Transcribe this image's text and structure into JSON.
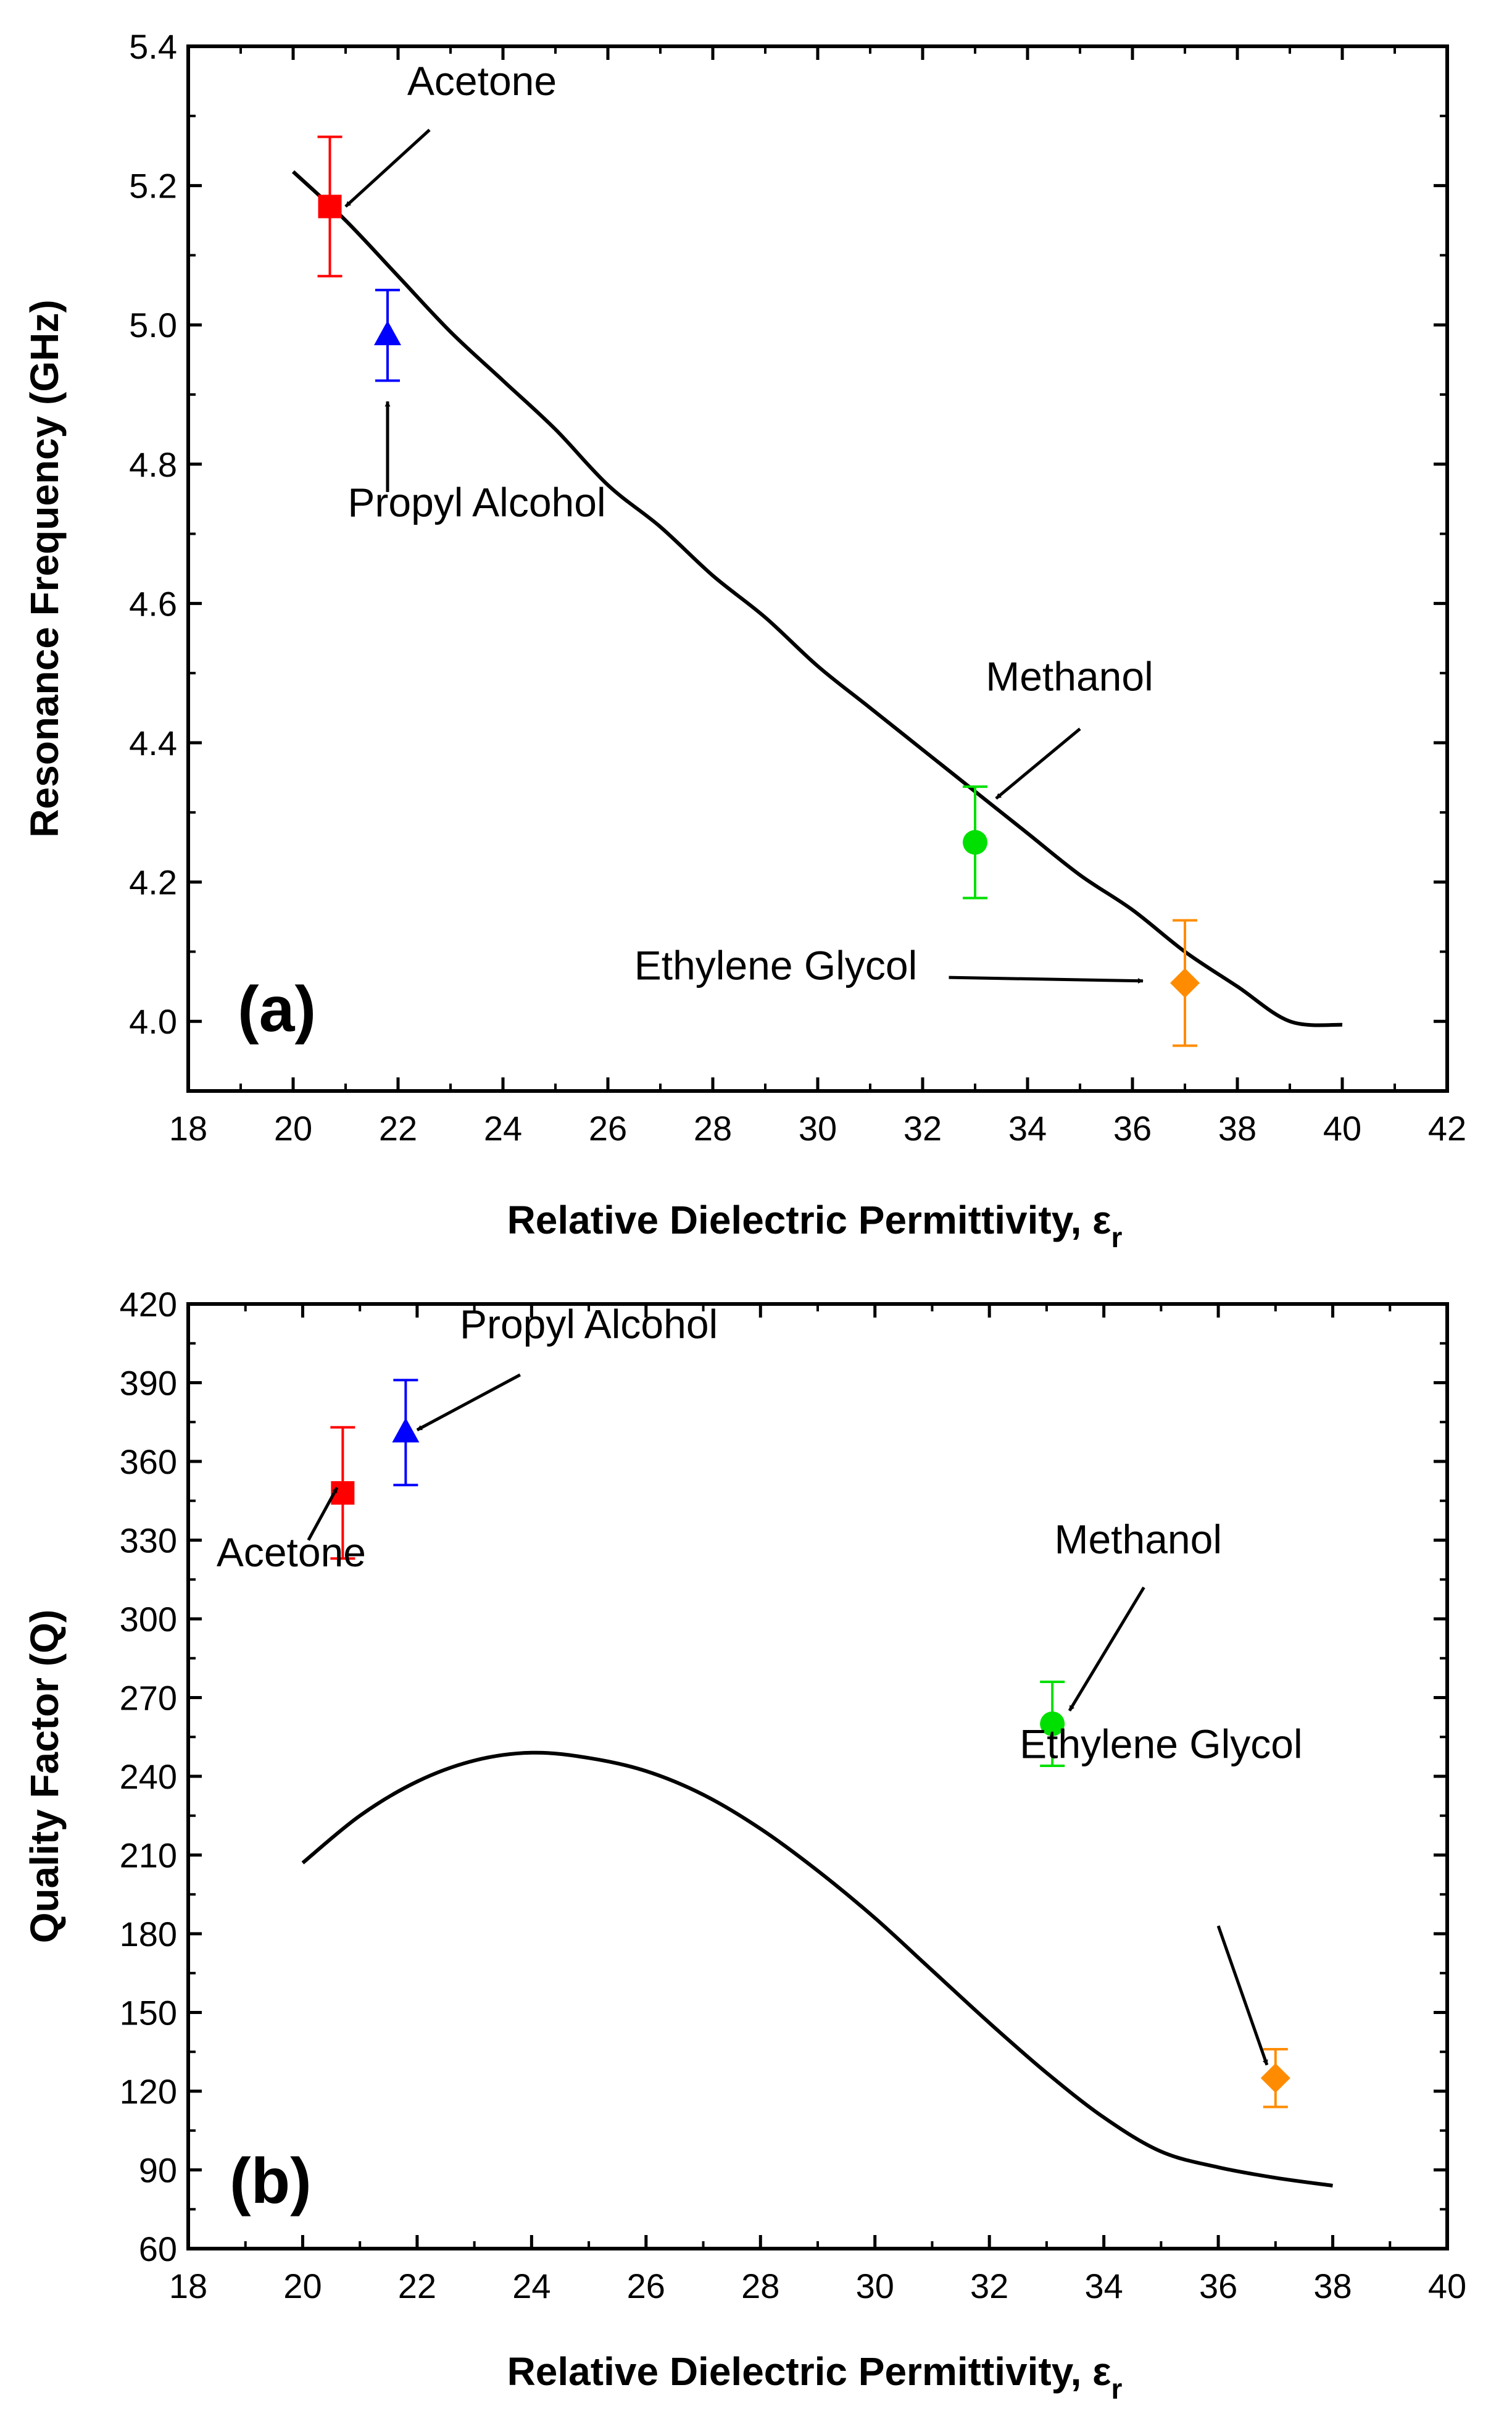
{
  "chart_data": [
    {
      "panel": "a",
      "type": "scatter",
      "panel_label": "(a)",
      "xlabel": "Relative Dielectric Permittivity, ε",
      "xlabel_sub": "r",
      "ylabel": "Resonance Frequency (GHz)",
      "xlim": [
        18,
        42
      ],
      "ylim": [
        3.9,
        5.4
      ],
      "xticks": [
        18,
        20,
        22,
        24,
        26,
        28,
        30,
        32,
        34,
        36,
        38,
        40,
        42
      ],
      "xtick_labels": [
        "18",
        "20",
        "22",
        "24",
        "26",
        "28",
        "30",
        "32",
        "34",
        "36",
        "38",
        "40",
        "42"
      ],
      "yticks": [
        4.0,
        4.2,
        4.4,
        4.6,
        4.8,
        5.0,
        5.2,
        5.4
      ],
      "ytick_labels": [
        "4.0",
        "4.2",
        "4.4",
        "4.6",
        "4.8",
        "5.0",
        "5.2",
        "5.4"
      ],
      "curve": {
        "x": [
          20,
          21,
          22,
          23,
          24,
          25,
          26,
          27,
          28,
          29,
          30,
          31,
          32,
          33,
          34,
          35,
          36,
          37,
          38,
          39,
          40
        ],
        "y": [
          5.22,
          5.15,
          5.07,
          4.99,
          4.92,
          4.85,
          4.77,
          4.71,
          4.64,
          4.58,
          4.51,
          4.45,
          4.39,
          4.33,
          4.27,
          4.21,
          4.16,
          4.1,
          4.05,
          4.0,
          3.995
        ]
      },
      "points": [
        {
          "name": "Acetone",
          "x": 20.7,
          "y": 5.17,
          "err": 0.1,
          "color": "#ff0000",
          "marker": "square"
        },
        {
          "name": "Propyl Alcohol",
          "x": 21.8,
          "y": 4.985,
          "err": 0.065,
          "color": "#0000ff",
          "marker": "triangle"
        },
        {
          "name": "Methanol",
          "x": 33.0,
          "y": 4.257,
          "err": 0.08,
          "color": "#00e000",
          "marker": "circle"
        },
        {
          "name": "Ethylene Glycol",
          "x": 37.0,
          "y": 4.055,
          "err": 0.09,
          "color": "#ff8c00",
          "marker": "diamond"
        }
      ],
      "annotations": [
        {
          "text": "Acetone",
          "text_x": 23.6,
          "text_y": 5.33,
          "arrow_from": [
            22.6,
            5.28
          ],
          "arrow_to": [
            21.0,
            5.17
          ]
        },
        {
          "text": "Propyl Alcohol",
          "text_x": 23.5,
          "text_y": 4.725,
          "arrow_from": [
            21.8,
            4.76
          ],
          "arrow_to": [
            21.8,
            4.89
          ]
        },
        {
          "text": "Methanol",
          "text_x": 34.8,
          "text_y": 4.475,
          "arrow_from": [
            35.0,
            4.42
          ],
          "arrow_to": [
            33.4,
            4.32
          ]
        },
        {
          "text": "Ethylene Glycol",
          "text_x": 29.2,
          "text_y": 4.06,
          "arrow_from": [
            32.5,
            4.063
          ],
          "arrow_to": [
            36.2,
            4.058
          ]
        }
      ]
    },
    {
      "panel": "b",
      "type": "scatter",
      "panel_label": "(b)",
      "xlabel": "Relative Dielectric Permittivity, ε",
      "xlabel_sub": "r",
      "ylabel": "Quality Factor (Q)",
      "xlim": [
        18,
        40
      ],
      "ylim": [
        60,
        420
      ],
      "xticks": [
        18,
        20,
        22,
        24,
        26,
        28,
        30,
        32,
        34,
        36,
        38,
        40
      ],
      "xtick_labels": [
        "18",
        "20",
        "22",
        "24",
        "26",
        "28",
        "30",
        "32",
        "34",
        "36",
        "38",
        "40"
      ],
      "yticks": [
        60,
        90,
        120,
        150,
        180,
        210,
        240,
        270,
        300,
        330,
        360,
        390,
        420
      ],
      "ytick_labels": [
        "60",
        "90",
        "120",
        "150",
        "180",
        "210",
        "240",
        "270",
        "300",
        "330",
        "360",
        "390",
        "420"
      ],
      "curve": {
        "x": [
          20,
          21,
          22,
          23,
          24,
          25,
          26,
          27,
          28,
          29,
          30,
          31,
          32,
          33,
          34,
          35,
          36,
          37,
          38
        ],
        "y": [
          207,
          225,
          238,
          246,
          249,
          247,
          242,
          233,
          220,
          204,
          186,
          166,
          146,
          127,
          110,
          97,
          91,
          87,
          84
        ]
      },
      "points": [
        {
          "name": "Acetone",
          "x": 20.7,
          "y": 348,
          "err": 25,
          "color": "#ff0000",
          "marker": "square"
        },
        {
          "name": "Propyl Alcohol",
          "x": 21.8,
          "y": 371,
          "err": 20,
          "color": "#0000ff",
          "marker": "triangle"
        },
        {
          "name": "Methanol",
          "x": 33.1,
          "y": 260,
          "err": 16,
          "color": "#00e000",
          "marker": "circle"
        },
        {
          "name": "Ethylene Glycol",
          "x": 37.0,
          "y": 125,
          "err": 11,
          "color": "#ff8c00",
          "marker": "diamond"
        }
      ],
      "annotations": [
        {
          "text": "Propyl Alcohol",
          "text_x": 25.0,
          "text_y": 407,
          "arrow_from": [
            23.8,
            393
          ],
          "arrow_to": [
            22.0,
            372
          ]
        },
        {
          "text": "Acetone",
          "text_x": 19.8,
          "text_y": 320,
          "arrow_from": [
            20.1,
            330
          ],
          "arrow_to": [
            20.6,
            350
          ]
        },
        {
          "text": "Methanol",
          "text_x": 34.6,
          "text_y": 325,
          "arrow_from": [
            34.7,
            312
          ],
          "arrow_to": [
            33.4,
            265
          ]
        },
        {
          "text": "Ethylene Glycol",
          "text_x": 35.0,
          "text_y": 247,
          "arrow_from": [
            36.0,
            183
          ],
          "arrow_to": [
            36.85,
            130
          ]
        }
      ]
    }
  ]
}
